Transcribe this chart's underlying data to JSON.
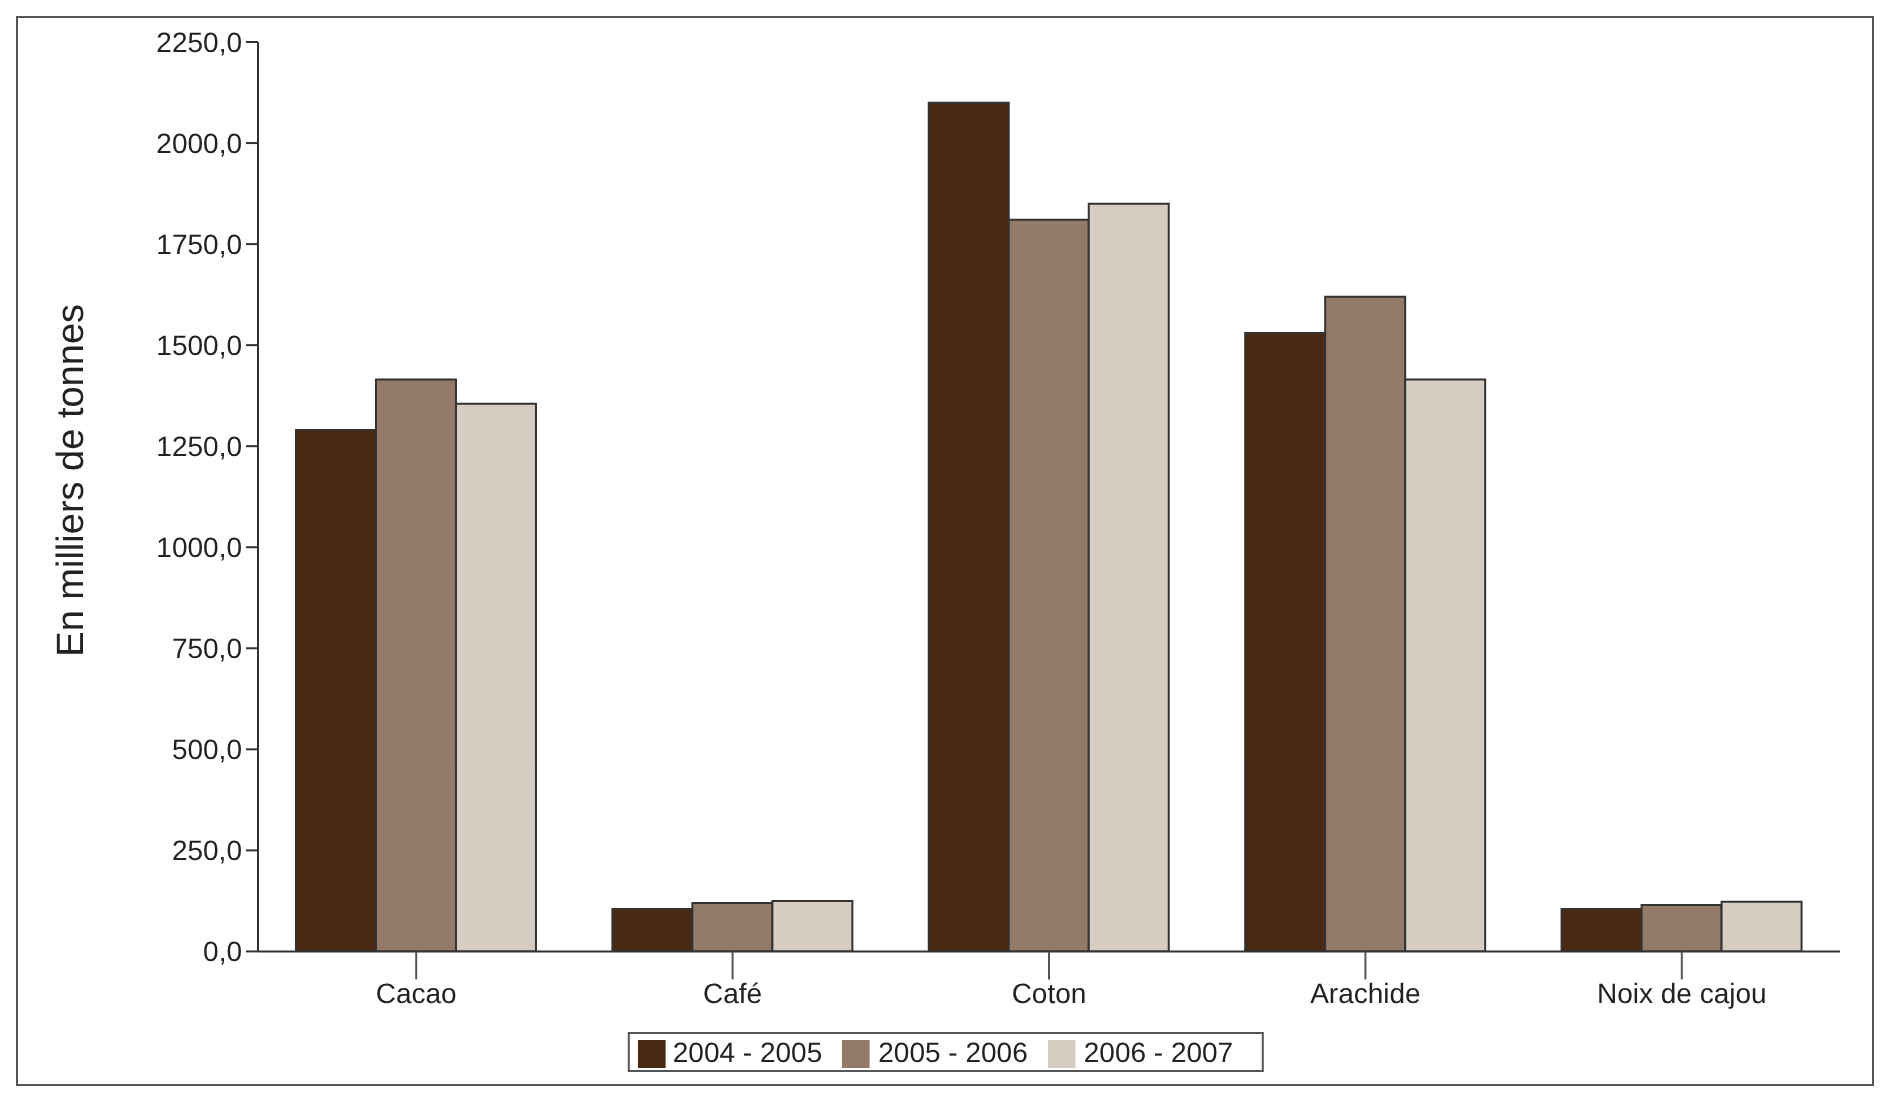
{
  "chart_data": {
    "type": "bar",
    "ylabel": "En milliers de tonnes",
    "categories": [
      "Cacao",
      "Café",
      "Coton",
      "Arachide",
      "Noix de cajou"
    ],
    "series": [
      {
        "name": "2004 - 2005",
        "color": "#4a2912",
        "values": [
          1290,
          105,
          2100,
          1530,
          105
        ]
      },
      {
        "name": "2005 - 2006",
        "color": "#947a68",
        "values": [
          1415,
          120,
          1810,
          1620,
          115
        ]
      },
      {
        "name": "2006 - 2007",
        "color": "#d6ccc2",
        "values": [
          1355,
          125,
          1850,
          1415,
          123
        ]
      }
    ],
    "ylim": [
      0,
      2250
    ],
    "yticks": [
      {
        "value": 0,
        "label": "0,0"
      },
      {
        "value": 250,
        "label": "250,0"
      },
      {
        "value": 500,
        "label": "500,0"
      },
      {
        "value": 750,
        "label": "750,0"
      },
      {
        "value": 1000,
        "label": "1000,0"
      },
      {
        "value": 1250,
        "label": "1250,0"
      },
      {
        "value": 1500,
        "label": "1500,0"
      },
      {
        "value": 1750,
        "label": "1750,0"
      },
      {
        "value": 2000,
        "label": "2000,0"
      },
      {
        "value": 2250,
        "label": "2250,0"
      }
    ],
    "grid": false,
    "legend": "bottom"
  }
}
